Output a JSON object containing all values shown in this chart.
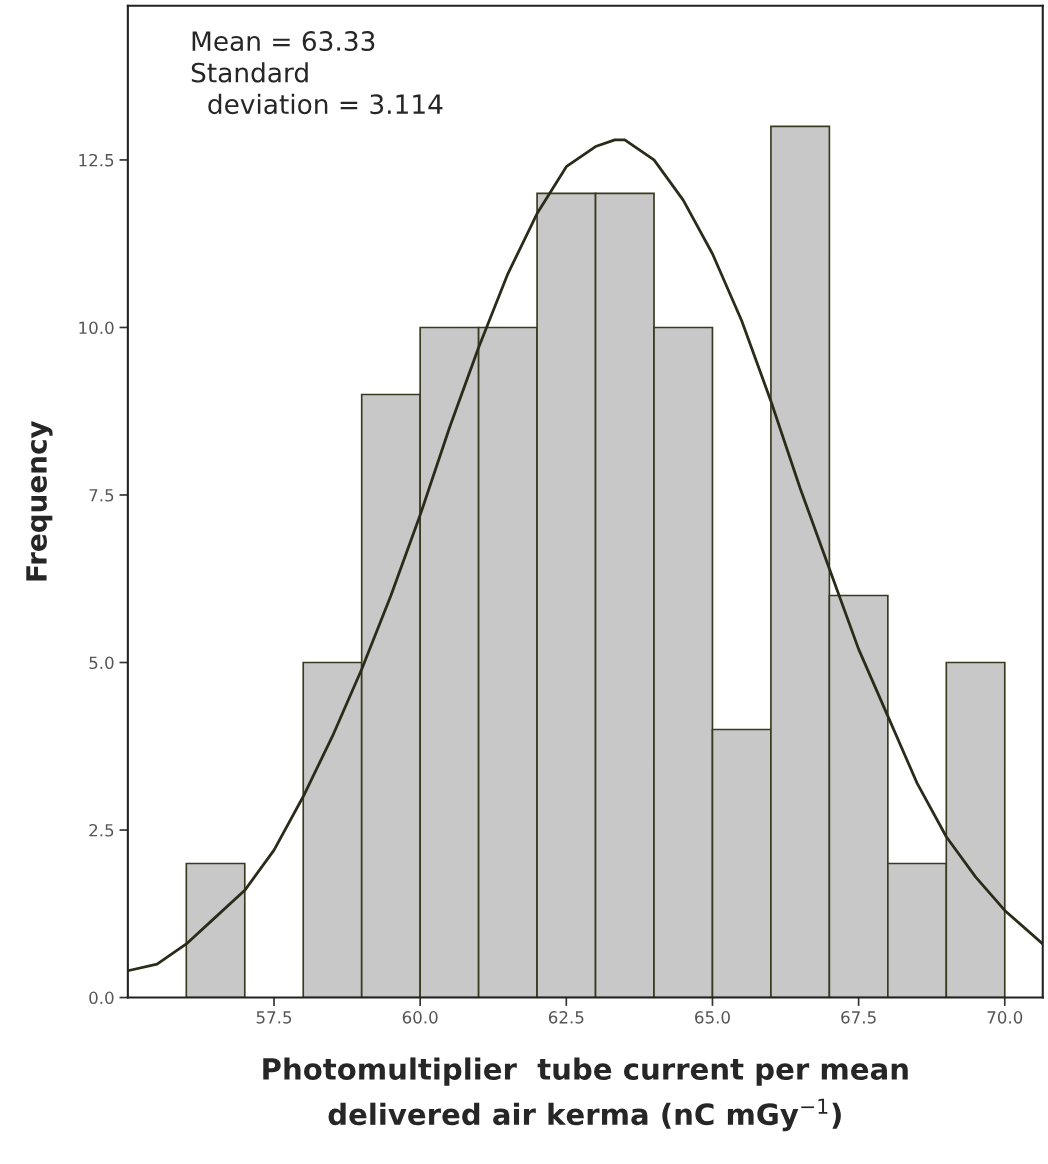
{
  "chart_data": {
    "type": "histogram",
    "bins": [
      56,
      57,
      58,
      59,
      60,
      61,
      62,
      63,
      64,
      65,
      66,
      67,
      68,
      69,
      70
    ],
    "values": [
      2,
      0,
      5,
      9,
      10,
      10,
      12,
      12,
      10,
      4,
      13,
      6,
      2,
      5
    ],
    "color": "#c8c8c8",
    "series": [
      {
        "type": "line",
        "color": "#2b2b1a",
        "x": [
          55,
          55.5,
          56,
          56.5,
          57,
          57.5,
          58,
          58.5,
          59,
          59.5,
          60,
          60.5,
          61,
          61.5,
          62,
          62.5,
          63,
          63.33,
          63.5,
          64,
          64.5,
          65,
          65.5,
          66,
          66.5,
          67,
          67.5,
          68,
          68.5,
          69,
          69.5,
          70,
          70.65
        ],
        "values": [
          0.4,
          0.5,
          0.8,
          1.2,
          1.6,
          2.2,
          3.0,
          3.9,
          4.9,
          6.0,
          7.2,
          8.5,
          9.7,
          10.8,
          11.7,
          12.4,
          12.7,
          12.8,
          12.8,
          12.5,
          11.9,
          11.1,
          10.1,
          8.9,
          7.6,
          6.4,
          5.2,
          4.2,
          3.2,
          2.4,
          1.8,
          1.3,
          0.8
        ]
      }
    ],
    "xlabel": "Photomultiplier  tube current per mean\ndelivered air kerma (nC mGy$^{−1}$)",
    "ylabel": "Frequency",
    "annotations": [
      "Mean = 63.33\nStandard\n  deviation = 3.114"
    ],
    "xlim": [
      55,
      70.65
    ],
    "ylim": [
      0,
      14.8
    ],
    "xticks": [
      {
        "value": 57.5,
        "label": "57.5"
      },
      {
        "value": 60,
        "label": "60.0"
      },
      {
        "value": 62.5,
        "label": "62.5"
      },
      {
        "value": 65,
        "label": "65.0"
      },
      {
        "value": 67.5,
        "label": "67.5"
      },
      {
        "value": 70,
        "label": "70.0"
      }
    ],
    "yticks": [
      {
        "value": 0,
        "label": "0.0"
      },
      {
        "value": 2.5,
        "label": "2.5"
      },
      {
        "value": 5,
        "label": "5.0"
      },
      {
        "value": 7.5,
        "label": "7.5"
      },
      {
        "value": 10,
        "label": "10.0"
      },
      {
        "value": 12.5,
        "label": "12.5"
      }
    ],
    "grid": false,
    "legend": false
  }
}
